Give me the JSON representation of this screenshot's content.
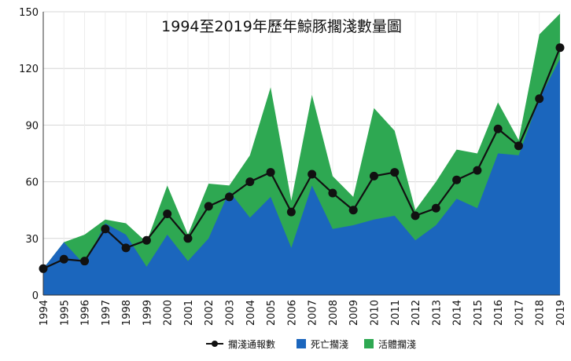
{
  "chart_data": {
    "type": "area",
    "title": "1994至2019年歷年鯨豚擱淺數量圖",
    "xlabel": "",
    "ylabel": "",
    "x": [
      "1994",
      "1995",
      "1996",
      "1997",
      "1998",
      "1999",
      "2000",
      "2001",
      "2002",
      "2003",
      "2004",
      "2005",
      "2006",
      "2007",
      "2008",
      "2009",
      "2010",
      "2011",
      "2012",
      "2013",
      "2014",
      "2015",
      "2016",
      "2017",
      "2018",
      "2019"
    ],
    "ylim": [
      0,
      150
    ],
    "yticks": [
      0,
      30,
      60,
      90,
      120,
      150
    ],
    "grid": true,
    "legend_position": "bottom",
    "series": [
      {
        "name": "擱淺通報數",
        "kind": "line",
        "color": "#111111",
        "values": [
          14,
          19,
          18,
          35,
          25,
          29,
          43,
          30,
          47,
          52,
          60,
          65,
          44,
          64,
          54,
          45,
          63,
          65,
          42,
          46,
          61,
          66,
          88,
          79,
          104,
          131
        ]
      },
      {
        "name": "死亡擱淺",
        "kind": "area",
        "color": "#1b66bd",
        "values": [
          14,
          28,
          16,
          38,
          32,
          15,
          32,
          18,
          30,
          55,
          41,
          52,
          25,
          58,
          35,
          37,
          40,
          42,
          29,
          37,
          51,
          46,
          75,
          74,
          104,
          125
        ]
      },
      {
        "name": "活體擱淺",
        "kind": "area",
        "color": "#2ea852",
        "values": [
          14,
          28,
          32,
          40,
          38,
          28,
          58,
          32,
          59,
          58,
          74,
          110,
          50,
          106,
          63,
          52,
          99,
          87,
          45,
          60,
          77,
          75,
          102,
          82,
          138,
          149
        ]
      }
    ]
  }
}
